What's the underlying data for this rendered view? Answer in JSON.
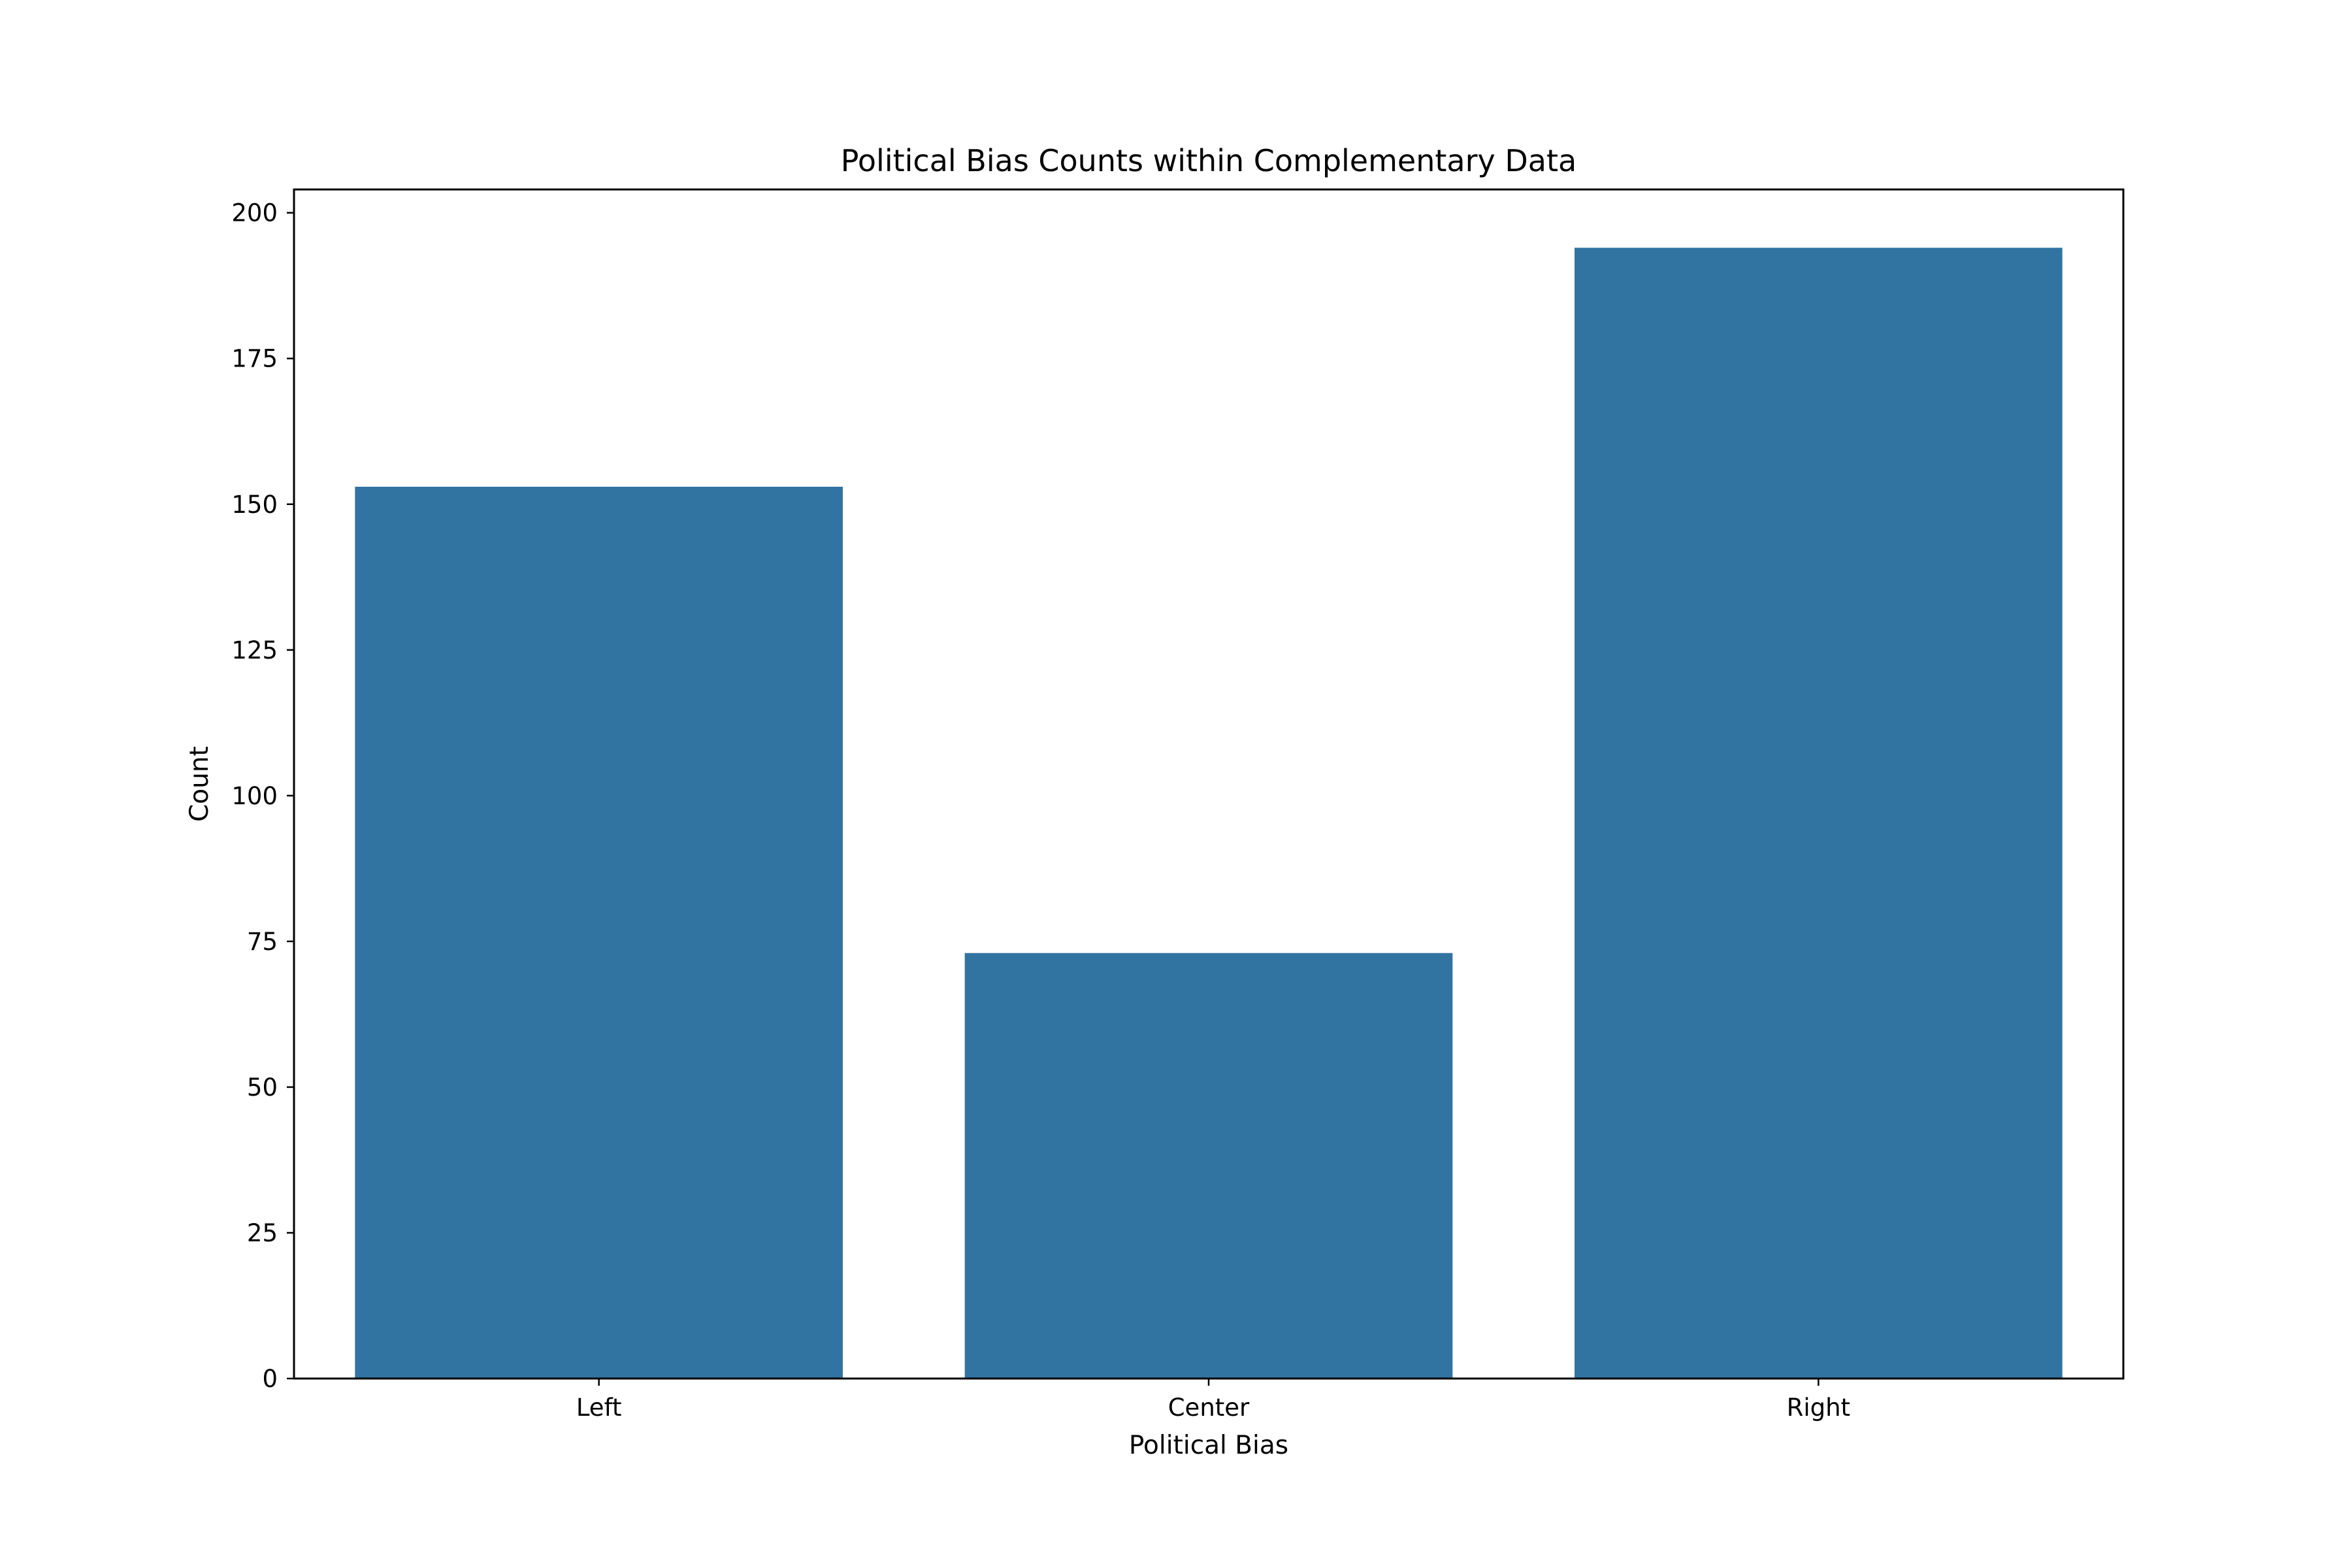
{
  "colors": {
    "bar": "#3274a1",
    "axis": "#000000",
    "background": "#ffffff"
  },
  "chart_data": {
    "type": "bar",
    "title": "Political Bias Counts within Complementary Data",
    "xlabel": "Political Bias",
    "ylabel": "Count",
    "categories": [
      "Left",
      "Center",
      "Right"
    ],
    "values": [
      153,
      73,
      194
    ],
    "ylim": [
      0,
      204
    ],
    "yticks": [
      0,
      25,
      50,
      75,
      100,
      125,
      150,
      175,
      200
    ],
    "grid": false,
    "legend": "none"
  }
}
